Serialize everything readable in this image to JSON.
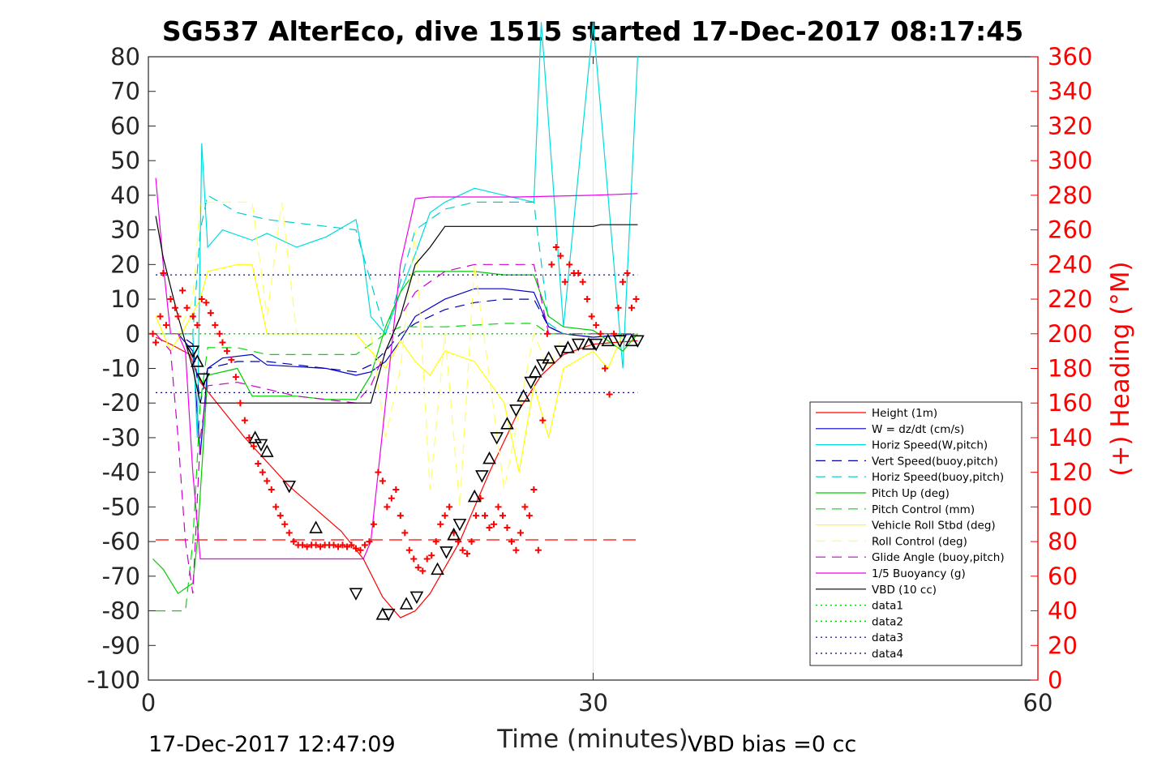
{
  "chart_data": {
    "type": "line",
    "title": "SG537 AlterEco, dive 1515 started 17-Dec-2017 08:17:45",
    "xlabel": "Time (minutes)",
    "ylabel": "",
    "ylabel_right": "(+) Heading (°M)",
    "xlim": [
      0,
      60
    ],
    "ylim": [
      -100,
      80
    ],
    "ylim_right": [
      0,
      360
    ],
    "xticks": [
      0,
      30,
      60
    ],
    "yticks": [
      -100,
      -90,
      -80,
      -70,
      -60,
      -50,
      -40,
      -30,
      -20,
      -10,
      0,
      10,
      20,
      30,
      40,
      50,
      60,
      70,
      80
    ],
    "yticks_right": [
      0,
      20,
      40,
      60,
      80,
      100,
      120,
      140,
      160,
      180,
      200,
      220,
      240,
      260,
      280,
      300,
      320,
      340,
      360
    ],
    "footer_left": "17-Dec-2017 12:47:09",
    "footer_right": "VBD bias =0 cc",
    "grid": "x at 30 only",
    "legend_position": "bottom-right",
    "series": [
      {
        "name": "Height (1m)",
        "color": "#ff0000",
        "style": "solid",
        "x": [
          0.5,
          1.5,
          2.8,
          3.5,
          6.5,
          9.5,
          13,
          14.5,
          15.8,
          17,
          18,
          19,
          21,
          23,
          25,
          26.5,
          28,
          30,
          33
        ],
        "y": [
          -1,
          -3,
          -6,
          -14,
          -30,
          -44,
          -57,
          -65,
          -76,
          -82,
          -80,
          -75,
          -60,
          -40,
          -22,
          -12,
          -6,
          -3,
          -2
        ]
      },
      {
        "name": "W = dz/dt (cm/s)",
        "color": "#0000cc",
        "style": "solid",
        "x": [
          0.5,
          2,
          3,
          3.5,
          4,
          5,
          7,
          8,
          12,
          14,
          15,
          16,
          17,
          18,
          20,
          22,
          24,
          26,
          27,
          28,
          30,
          33
        ],
        "y": [
          0,
          0,
          -5,
          -35,
          -10,
          -7,
          -6,
          -9,
          -10,
          -12,
          -11,
          -8,
          -2,
          5,
          10,
          13,
          13,
          12,
          2,
          0,
          -1,
          0
        ]
      },
      {
        "name": "Horiz Speed(W,pitch)",
        "color": "#00dddd",
        "style": "solid",
        "x": [
          0.5,
          2,
          3,
          3.3,
          3.6,
          4,
          5,
          7,
          8,
          10,
          12,
          14,
          14.5,
          15,
          16,
          17,
          18,
          19,
          20,
          22,
          24,
          26,
          26.5,
          28,
          30,
          32,
          33
        ],
        "y": [
          0,
          0,
          0,
          -30,
          55,
          25,
          30,
          27,
          29,
          25,
          28,
          33,
          22,
          5,
          0,
          12,
          23,
          35,
          38,
          42,
          40,
          38,
          90,
          2,
          90,
          -10,
          80
        ]
      },
      {
        "name": "Vert Speed(buoy,pitch)",
        "color": "#0000aa",
        "style": "dashed",
        "x": [
          0.5,
          2,
          3,
          3.5,
          4,
          6,
          8,
          10,
          12,
          14,
          15,
          16,
          17,
          18,
          20,
          22,
          24,
          26,
          27,
          28,
          30,
          33
        ],
        "y": [
          0,
          0,
          -3,
          -20,
          -10,
          -8,
          -8,
          -9,
          -10,
          -11,
          -9,
          -5,
          0,
          3,
          7,
          9,
          10,
          10,
          2,
          0,
          -1,
          0
        ]
      },
      {
        "name": "Horiz Speed(buoy,pitch)",
        "color": "#00cccc",
        "style": "dashed",
        "x": [
          0.5,
          2,
          3,
          3.5,
          4,
          6,
          8,
          10,
          12,
          14,
          15,
          16,
          17,
          18,
          20,
          22,
          24,
          26,
          27,
          28,
          30,
          33
        ],
        "y": [
          0,
          0,
          0,
          30,
          40,
          35,
          33,
          32,
          31,
          30,
          15,
          0,
          15,
          30,
          36,
          38,
          38,
          38,
          3,
          0,
          0,
          0
        ]
      },
      {
        "name": "Pitch Up (deg)",
        "color": "#00cc00",
        "style": "solid",
        "x": [
          0.3,
          1,
          2,
          3,
          3.3,
          4,
          6,
          7,
          10,
          12,
          14,
          15,
          16,
          17,
          18,
          20,
          22,
          24,
          26,
          27,
          28,
          30,
          32,
          33
        ],
        "y": [
          -65,
          -68,
          -75,
          -72,
          -60,
          -12,
          -10,
          -18,
          -18,
          -19,
          -19,
          -12,
          2,
          12,
          18,
          18,
          18,
          17,
          17,
          5,
          2,
          1,
          -5,
          0
        ]
      },
      {
        "name": "Pitch Control (mm)",
        "color": "#00dd00",
        "style": "dashed",
        "x": [
          0.5,
          2.5,
          3,
          3.5,
          4,
          6,
          8,
          10,
          14,
          15,
          16,
          17,
          18,
          20,
          24,
          26,
          27,
          30,
          33
        ],
        "y": [
          -80,
          -80,
          -60,
          -20,
          -4,
          -4,
          -6,
          -6,
          -6,
          -3,
          0,
          2,
          2,
          2,
          3,
          3,
          0,
          0,
          0
        ]
      },
      {
        "name": "Vehicle Roll Stbd (deg)",
        "color": "#ffff00",
        "style": "solid",
        "x": [
          0.5,
          1.5,
          2.5,
          3.5,
          4,
          6,
          7,
          8,
          9,
          10,
          12,
          14,
          15,
          16,
          17,
          18,
          19,
          20,
          22,
          24,
          25,
          26,
          27,
          28,
          30,
          31,
          32,
          33
        ],
        "y": [
          5,
          -5,
          2,
          10,
          18,
          20,
          20,
          0,
          0,
          0,
          0,
          0,
          -5,
          -10,
          -2,
          -8,
          -12,
          -5,
          -8,
          -20,
          -40,
          -15,
          -30,
          -10,
          -5,
          -10,
          0,
          0
        ]
      },
      {
        "name": "Roll Control (deg)",
        "color": "#ffff66",
        "style": "dashed",
        "x": [
          0.5,
          2,
          3,
          3.5,
          4,
          6,
          7,
          8,
          9,
          10,
          12,
          14,
          15,
          16,
          17,
          18,
          19,
          20,
          21,
          22,
          24,
          26,
          27,
          28,
          30,
          33
        ],
        "y": [
          0,
          0,
          10,
          38,
          38,
          38,
          38,
          5,
          38,
          0,
          0,
          0,
          0,
          -30,
          -10,
          30,
          -45,
          0,
          -50,
          20,
          -45,
          0,
          -10,
          0,
          0,
          0
        ]
      },
      {
        "name": "Glide Angle (buoy,pitch)",
        "color": "#cc00cc",
        "style": "dashed",
        "x": [
          0.5,
          1.5,
          2,
          2.5,
          3,
          3.5,
          4,
          6,
          8,
          10,
          12,
          14,
          15,
          16,
          17,
          18,
          20,
          22,
          24,
          26,
          27,
          30,
          33
        ],
        "y": [
          0,
          -5,
          -30,
          -60,
          -75,
          -30,
          -15,
          -14,
          -16,
          -18,
          -19,
          -20,
          -15,
          -5,
          5,
          12,
          18,
          20,
          20,
          20,
          0,
          0,
          0
        ]
      },
      {
        "name": "1/5 Buoyancy (g)",
        "color": "#ee00ee",
        "style": "solid",
        "x": [
          0.5,
          1,
          1.5,
          2,
          2.5,
          3,
          3.5,
          4,
          10,
          13,
          14.5,
          15,
          16,
          17,
          18,
          19,
          20,
          25,
          30,
          33
        ],
        "y": [
          45,
          20,
          0,
          0,
          -5,
          -40,
          -65,
          -65,
          -65,
          -65,
          -65,
          -60,
          -20,
          20,
          39,
          39.5,
          39.5,
          39.5,
          40,
          40.5
        ]
      },
      {
        "name": "VBD (10 cc)",
        "color": "#000000",
        "style": "solid",
        "x": [
          0.5,
          1,
          2,
          3,
          3.5,
          5,
          10,
          14,
          15,
          16,
          17,
          18,
          19,
          20,
          25,
          30,
          30.5,
          33
        ],
        "y": [
          34,
          22,
          5,
          -10,
          -20,
          -20,
          -20,
          -20,
          -20,
          -5,
          5,
          20,
          25,
          31,
          31,
          31,
          31.5,
          31.5
        ]
      },
      {
        "name": "data1",
        "color": "#00cc00",
        "style": "dotted",
        "x": [
          0.5,
          33
        ],
        "y": [
          0,
          0
        ]
      },
      {
        "name": "data2",
        "color": "#00cc00",
        "style": "dotted",
        "x": [
          0.5,
          33
        ],
        "y": [
          0,
          0
        ]
      },
      {
        "name": "data3",
        "color": "#000080",
        "style": "dotted",
        "x": [
          0.5,
          33
        ],
        "y": [
          17,
          17
        ]
      },
      {
        "name": "data4",
        "color": "#000080",
        "style": "dotted",
        "x": [
          0.5,
          33
        ],
        "y": [
          -17,
          -17
        ]
      }
    ],
    "extra_lines": [
      {
        "color": "#ff0000",
        "style": "longdash",
        "x": [
          0.5,
          33
        ],
        "y": [
          -59.5,
          -59.5
        ]
      }
    ],
    "heading_points": {
      "color": "#ff0000",
      "marker": "+",
      "axis": "right",
      "x": [
        0.3,
        0.5,
        0.8,
        1.0,
        1.2,
        1.5,
        1.8,
        2.0,
        2.3,
        2.6,
        3.0,
        3.3,
        3.6,
        3.9,
        4.2,
        4.5,
        4.8,
        5.0,
        5.3,
        5.6,
        5.9,
        6.2,
        6.5,
        6.8,
        7.1,
        7.4,
        7.7,
        8.0,
        8.3,
        8.6,
        8.9,
        9.2,
        9.5,
        9.8,
        10.1,
        10.4,
        10.7,
        11.0,
        11.3,
        11.6,
        11.9,
        12.2,
        12.5,
        12.8,
        13.1,
        13.4,
        13.7,
        14.0,
        14.3,
        14.6,
        14.9,
        15.2,
        15.5,
        15.8,
        16.1,
        16.4,
        16.7,
        17.0,
        17.3,
        17.6,
        17.9,
        18.2,
        18.5,
        18.8,
        19.1,
        19.4,
        19.7,
        20.0,
        20.3,
        20.6,
        20.9,
        21.2,
        21.5,
        21.8,
        22.1,
        22.4,
        22.7,
        23.0,
        23.3,
        23.6,
        23.9,
        24.2,
        24.5,
        24.8,
        25.1,
        25.4,
        25.7,
        26.0,
        26.3,
        26.6,
        26.9,
        27.2,
        27.5,
        27.8,
        28.1,
        28.4,
        28.7,
        29.0,
        29.3,
        29.6,
        29.9,
        30.2,
        30.5,
        30.8,
        31.1,
        31.4,
        31.7,
        32.0,
        32.3,
        32.6,
        32.9
      ],
      "y": [
        200,
        195,
        210,
        235,
        205,
        220,
        215,
        210,
        225,
        215,
        210,
        205,
        220,
        218,
        212,
        205,
        200,
        195,
        190,
        185,
        175,
        160,
        150,
        140,
        135,
        125,
        120,
        115,
        110,
        100,
        95,
        90,
        85,
        80,
        78,
        78,
        77,
        78,
        78,
        77,
        78,
        78,
        78,
        77,
        78,
        77,
        78,
        76,
        75,
        78,
        80,
        90,
        120,
        115,
        100,
        105,
        110,
        95,
        85,
        75,
        70,
        65,
        63,
        70,
        72,
        80,
        90,
        95,
        100,
        85,
        80,
        75,
        73,
        80,
        95,
        105,
        95,
        88,
        90,
        100,
        95,
        88,
        80,
        75,
        85,
        100,
        95,
        110,
        75,
        150,
        200,
        240,
        250,
        245,
        230,
        240,
        235,
        235,
        230,
        220,
        210,
        205,
        200,
        180,
        165,
        200,
        215,
        230,
        235,
        215,
        220
      ]
    },
    "triangle_markers": {
      "color": "#000000",
      "x": [
        3.0,
        3.3,
        3.7,
        7.2,
        7.6,
        8.0,
        9.5,
        11.3,
        14.0,
        15.8,
        16.2,
        17.4,
        18.1,
        19.5,
        20.1,
        20.6,
        21.0,
        22.0,
        22.5,
        23.0,
        23.5,
        24.2,
        24.8,
        25.3,
        25.8,
        26.1,
        26.6,
        27.0,
        27.8,
        28.3,
        29.0,
        29.7,
        30.2,
        31.0,
        31.8,
        32.6,
        33.0
      ],
      "y": [
        -5,
        -8,
        -13,
        -30,
        -32,
        -34,
        -44,
        -56,
        -75,
        -81,
        -81,
        -78,
        -76,
        -68,
        -63,
        -58,
        -55,
        -47,
        -41,
        -36,
        -30,
        -26,
        -22,
        -18,
        -14,
        -11,
        -9,
        -7,
        -5,
        -4,
        -3,
        -3,
        -3,
        -2,
        -2,
        -2,
        -2
      ]
    }
  }
}
